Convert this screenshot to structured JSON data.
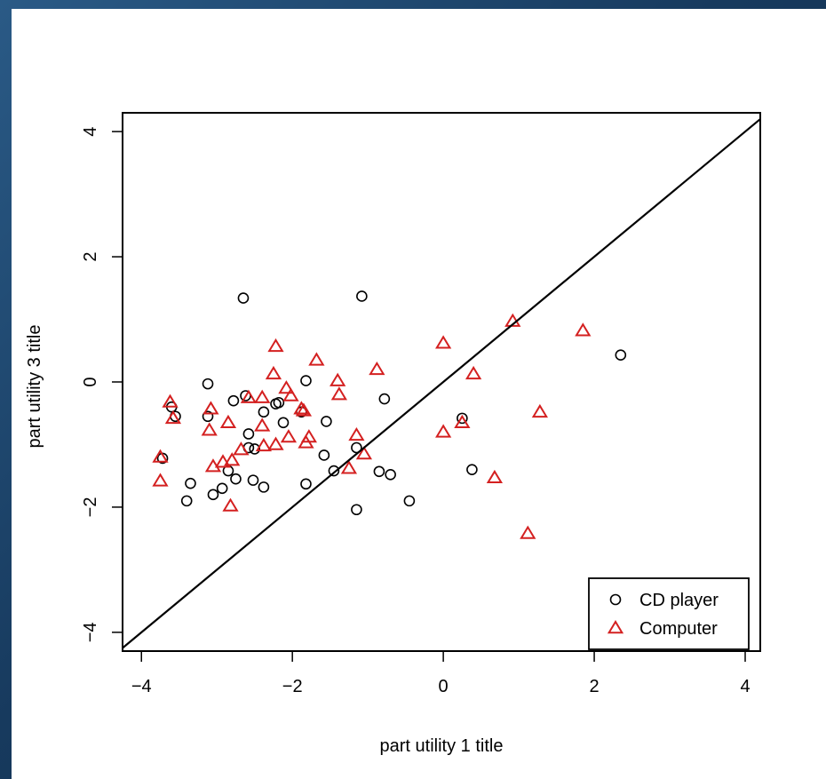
{
  "chart_data": {
    "type": "scatter",
    "title": "",
    "xlabel": "part utility 1 title",
    "ylabel": "part utility 3 title",
    "xlim": [
      -4,
      4
    ],
    "ylim": [
      -4,
      4
    ],
    "xticks": [
      "−4",
      "−2",
      "0",
      "2",
      "4"
    ],
    "yticks": [
      "−4",
      "−2",
      "0",
      "2",
      "4"
    ],
    "grid": false,
    "legend_position": "bottom-right",
    "reference_line": {
      "kind": "identity",
      "slope": 1,
      "intercept": 0
    },
    "series": [
      {
        "name": "CD player",
        "marker": "circle",
        "color": "#000000",
        "points": [
          [
            -3.72,
            -1.22
          ],
          [
            -3.6,
            -0.4
          ],
          [
            -3.55,
            -0.55
          ],
          [
            -3.4,
            -1.9
          ],
          [
            -3.35,
            -1.62
          ],
          [
            -3.12,
            -0.03
          ],
          [
            -3.12,
            -0.55
          ],
          [
            -3.05,
            -1.8
          ],
          [
            -2.93,
            -1.7
          ],
          [
            -2.85,
            -1.42
          ],
          [
            -2.78,
            -0.3
          ],
          [
            -2.75,
            -1.55
          ],
          [
            -2.65,
            1.34
          ],
          [
            -2.62,
            -0.22
          ],
          [
            -2.58,
            -0.83
          ],
          [
            -2.58,
            -1.05
          ],
          [
            -2.52,
            -1.57
          ],
          [
            -2.5,
            -1.07
          ],
          [
            -2.38,
            -0.48
          ],
          [
            -2.38,
            -1.68
          ],
          [
            -2.22,
            -0.35
          ],
          [
            -2.18,
            -0.33
          ],
          [
            -2.12,
            -0.65
          ],
          [
            -1.88,
            -0.48
          ],
          [
            -1.82,
            0.02
          ],
          [
            -1.82,
            -1.63
          ],
          [
            -1.58,
            -1.17
          ],
          [
            -1.55,
            -0.63
          ],
          [
            -1.45,
            -1.42
          ],
          [
            -1.15,
            -1.05
          ],
          [
            -1.15,
            -2.04
          ],
          [
            -1.08,
            1.37
          ],
          [
            -0.85,
            -1.43
          ],
          [
            -0.78,
            -0.27
          ],
          [
            -0.7,
            -1.48
          ],
          [
            -0.45,
            -1.9
          ],
          [
            0.25,
            -0.58
          ],
          [
            0.38,
            -1.4
          ],
          [
            2.35,
            0.43
          ]
        ]
      },
      {
        "name": "Computer",
        "marker": "triangle",
        "color": "#d42020",
        "points": [
          [
            -3.75,
            -1.2
          ],
          [
            -3.75,
            -1.58
          ],
          [
            -3.62,
            -0.32
          ],
          [
            -3.58,
            -0.58
          ],
          [
            -3.1,
            -0.77
          ],
          [
            -3.08,
            -0.43
          ],
          [
            -3.05,
            -1.35
          ],
          [
            -2.92,
            -1.28
          ],
          [
            -2.85,
            -0.65
          ],
          [
            -2.82,
            -1.98
          ],
          [
            -2.8,
            -1.25
          ],
          [
            -2.68,
            -1.08
          ],
          [
            -2.58,
            -0.25
          ],
          [
            -2.4,
            -0.25
          ],
          [
            -2.4,
            -0.7
          ],
          [
            -2.38,
            -1.02
          ],
          [
            -2.25,
            0.13
          ],
          [
            -2.22,
            0.57
          ],
          [
            -2.22,
            -1.0
          ],
          [
            -2.08,
            -0.1
          ],
          [
            -2.05,
            -0.88
          ],
          [
            -2.02,
            -0.22
          ],
          [
            -1.88,
            -0.43
          ],
          [
            -1.85,
            -0.46
          ],
          [
            -1.82,
            -0.97
          ],
          [
            -1.78,
            -0.88
          ],
          [
            -1.68,
            0.35
          ],
          [
            -1.4,
            0.02
          ],
          [
            -1.38,
            -0.2
          ],
          [
            -1.25,
            -1.38
          ],
          [
            -1.15,
            -0.85
          ],
          [
            -1.05,
            -1.15
          ],
          [
            -0.88,
            0.2
          ],
          [
            0.0,
            0.62
          ],
          [
            0.0,
            -0.8
          ],
          [
            0.25,
            -0.65
          ],
          [
            0.4,
            0.13
          ],
          [
            0.68,
            -1.53
          ],
          [
            0.92,
            0.97
          ],
          [
            1.12,
            -2.42
          ],
          [
            1.28,
            -0.48
          ],
          [
            1.85,
            0.82
          ]
        ]
      }
    ]
  }
}
